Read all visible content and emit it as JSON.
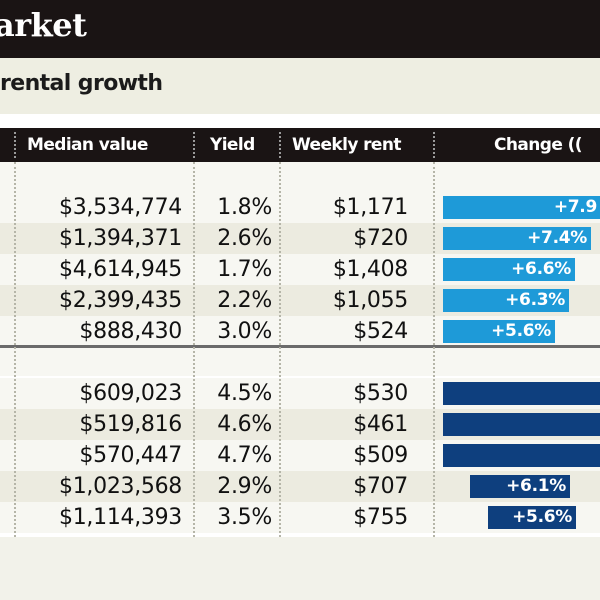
{
  "header": {
    "title": "arket",
    "subtitle": "rental growth"
  },
  "table": {
    "columns": {
      "median": "Median value",
      "yield": "Yield",
      "rent": "Weekly rent",
      "change": "Change (("
    },
    "group_a": [
      {
        "median": "$3,534,774",
        "yield": "1.8%",
        "rent": "$1,171",
        "change": "+7.9",
        "change_value": 7.9,
        "bar_color": "#1e9ad8"
      },
      {
        "median": "$1,394,371",
        "yield": "2.6%",
        "rent": "$720",
        "change": "+7.4%",
        "change_value": 7.4,
        "bar_color": "#1e9ad8"
      },
      {
        "median": "$4,614,945",
        "yield": "1.7%",
        "rent": "$1,408",
        "change": "+6.6%",
        "change_value": 6.6,
        "bar_color": "#1e9ad8"
      },
      {
        "median": "$2,399,435",
        "yield": "2.2%",
        "rent": "$1,055",
        "change": "+6.3%",
        "change_value": 6.3,
        "bar_color": "#1e9ad8"
      },
      {
        "median": "$888,430",
        "yield": "3.0%",
        "rent": "$524",
        "change": "+5.6%",
        "change_value": 5.6,
        "bar_color": "#1e9ad8"
      }
    ],
    "group_b": [
      {
        "median": "$609,023",
        "yield": "4.5%",
        "rent": "$530",
        "change": "",
        "change_value": 8.5,
        "bar_color": "#0e3f7e"
      },
      {
        "median": "$519,816",
        "yield": "4.6%",
        "rent": "$461",
        "change": "",
        "change_value": 8.5,
        "bar_color": "#0e3f7e"
      },
      {
        "median": "$570,447",
        "yield": "4.7%",
        "rent": "$509",
        "change": "",
        "change_value": 8.5,
        "bar_color": "#0e3f7e"
      },
      {
        "median": "$1,023,568",
        "yield": "2.9%",
        "rent": "$707",
        "change": "+6.1%",
        "change_value": 6.1,
        "bar_color": "#0e3f7e"
      },
      {
        "median": "$1,114,393",
        "yield": "3.5%",
        "rent": "$755",
        "change": "+5.6%",
        "change_value": 5.6,
        "bar_color": "#0e3f7e"
      }
    ]
  }
}
